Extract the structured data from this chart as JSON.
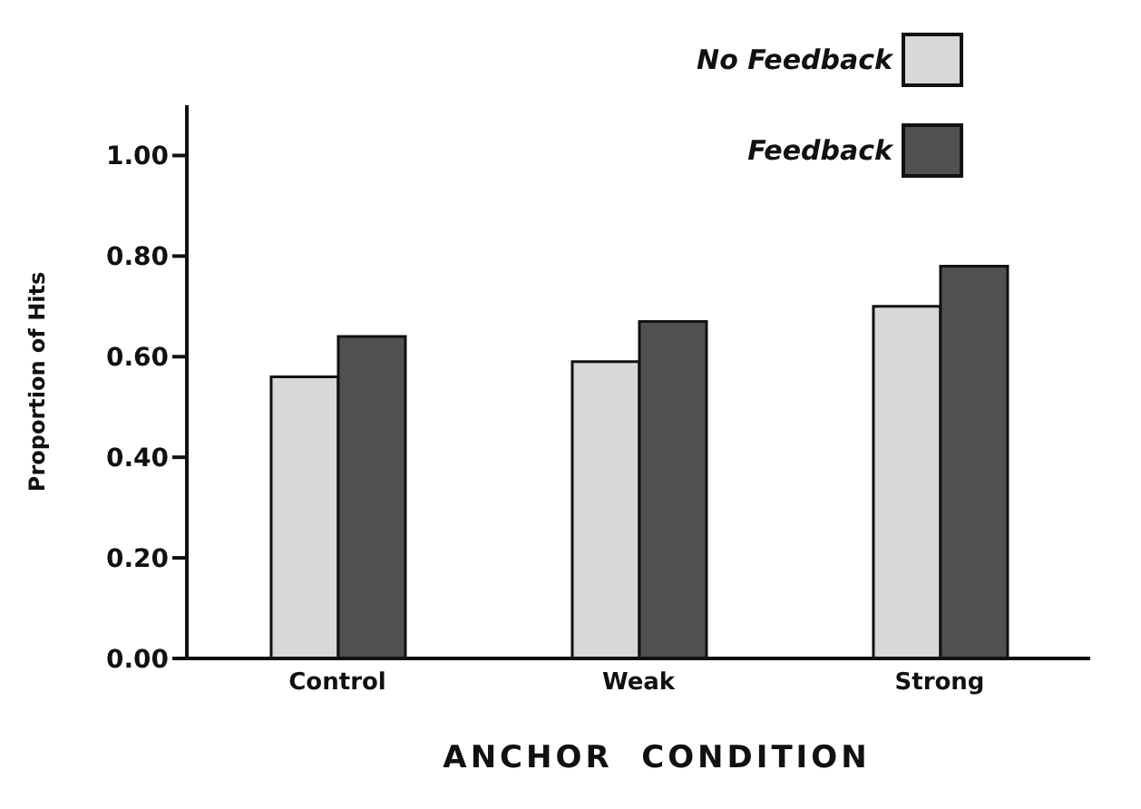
{
  "chart_data": {
    "type": "bar",
    "categories": [
      "Control",
      "Weak",
      "Strong"
    ],
    "series": [
      {
        "name": "No Feedback",
        "color": "#d8d8d8",
        "values": [
          0.56,
          0.59,
          0.7
        ]
      },
      {
        "name": "Feedback",
        "color": "#505050",
        "values": [
          0.64,
          0.67,
          0.78
        ]
      }
    ],
    "xlabel": "ANCHOR  CONDITION",
    "ylabel": "Proportion of Hits",
    "ylim": [
      0,
      1.1
    ],
    "yticks": [
      {
        "value": 0,
        "label": "0.00"
      },
      {
        "value": 0.2,
        "label": "0.20"
      },
      {
        "value": 0.4,
        "label": "0.40"
      },
      {
        "value": 0.6,
        "label": "0.60"
      },
      {
        "value": 0.8,
        "label": "0.80"
      },
      {
        "value": 1,
        "label": "1.00"
      }
    ],
    "grid": false,
    "legend": "top right"
  }
}
